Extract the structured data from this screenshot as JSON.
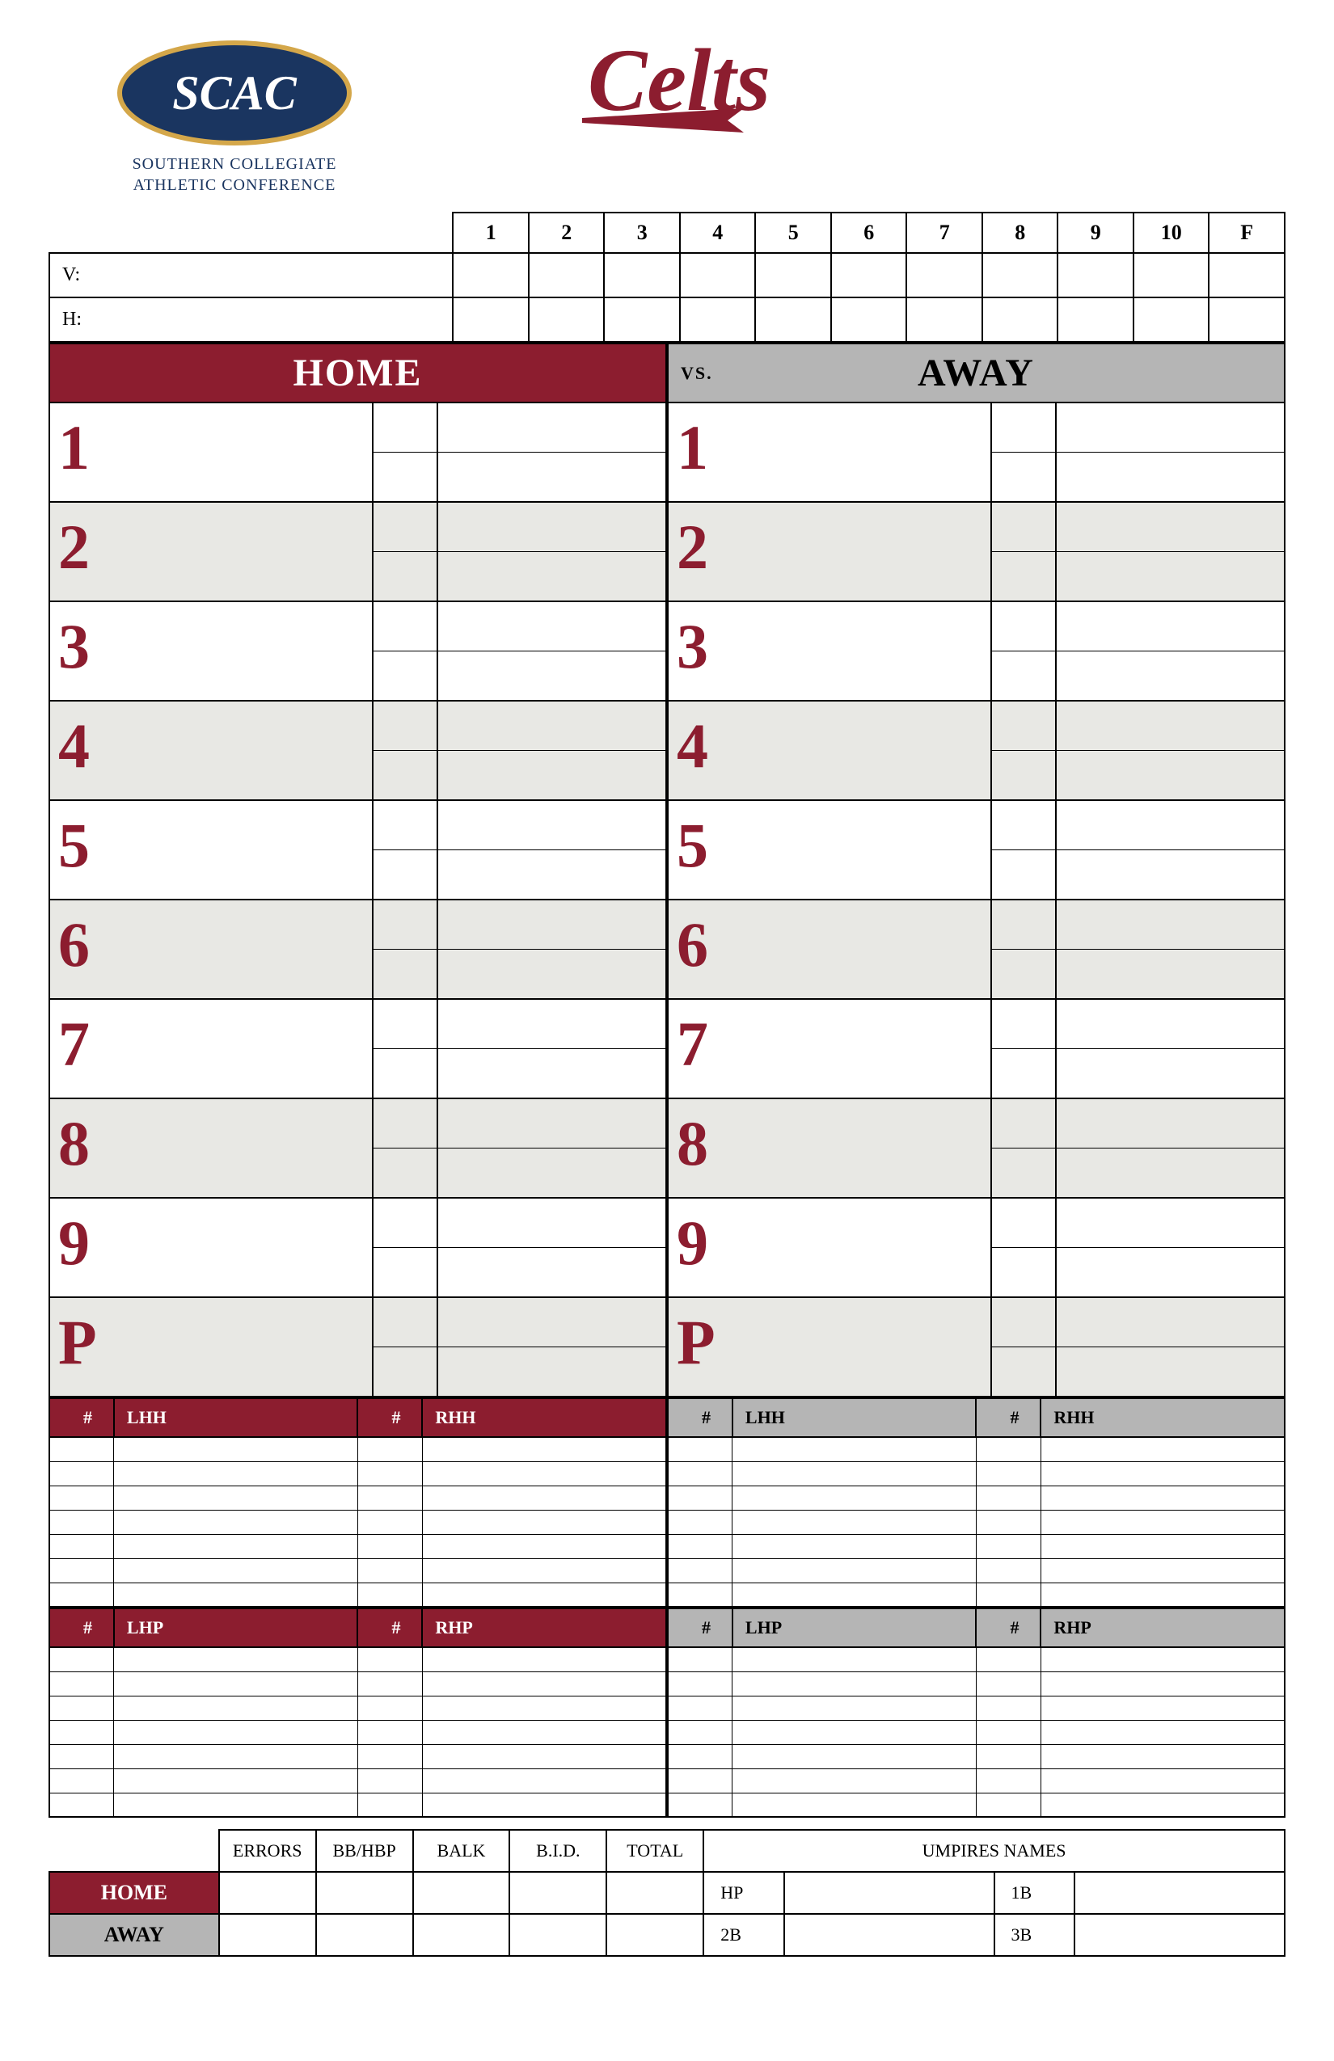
{
  "logos": {
    "scac_text": "SCAC",
    "scac_subtitle_line1": "SOUTHERN COLLEGIATE",
    "scac_subtitle_line2": "ATHLETIC CONFERENCE",
    "celts_text": "Celts"
  },
  "colors": {
    "maroon": "#8c1d2f",
    "navy": "#1a3560",
    "gold": "#d4a74a",
    "grey": "#b5b5b5",
    "light_grey": "#e8e8e4",
    "white": "#ffffff",
    "black": "#000000"
  },
  "linescore": {
    "innings": [
      "1",
      "2",
      "3",
      "4",
      "5",
      "6",
      "7",
      "8",
      "9",
      "10",
      "F"
    ],
    "visitor_label": "V:",
    "home_label": "H:"
  },
  "lineup": {
    "home_header": "HOME",
    "away_header": "AWAY",
    "vs_label": "VS.",
    "positions": [
      "1",
      "2",
      "3",
      "4",
      "5",
      "6",
      "7",
      "8",
      "9",
      "P"
    ]
  },
  "sub_headers": {
    "num_symbol": "#",
    "lhh": "LHH",
    "rhh": "RHH",
    "lhp": "LHP",
    "rhp": "RHP"
  },
  "sub_rows_hitters": 7,
  "sub_rows_pitchers": 7,
  "bottom": {
    "stats": [
      "ERRORS",
      "BB/HBP",
      "BALK",
      "B.I.D.",
      "TOTAL"
    ],
    "umpires_header": "UMPIRES NAMES",
    "home_label": "HOME",
    "away_label": "AWAY",
    "ump_positions": {
      "hp": "HP",
      "b1": "1B",
      "b2": "2B",
      "b3": "3B"
    }
  }
}
